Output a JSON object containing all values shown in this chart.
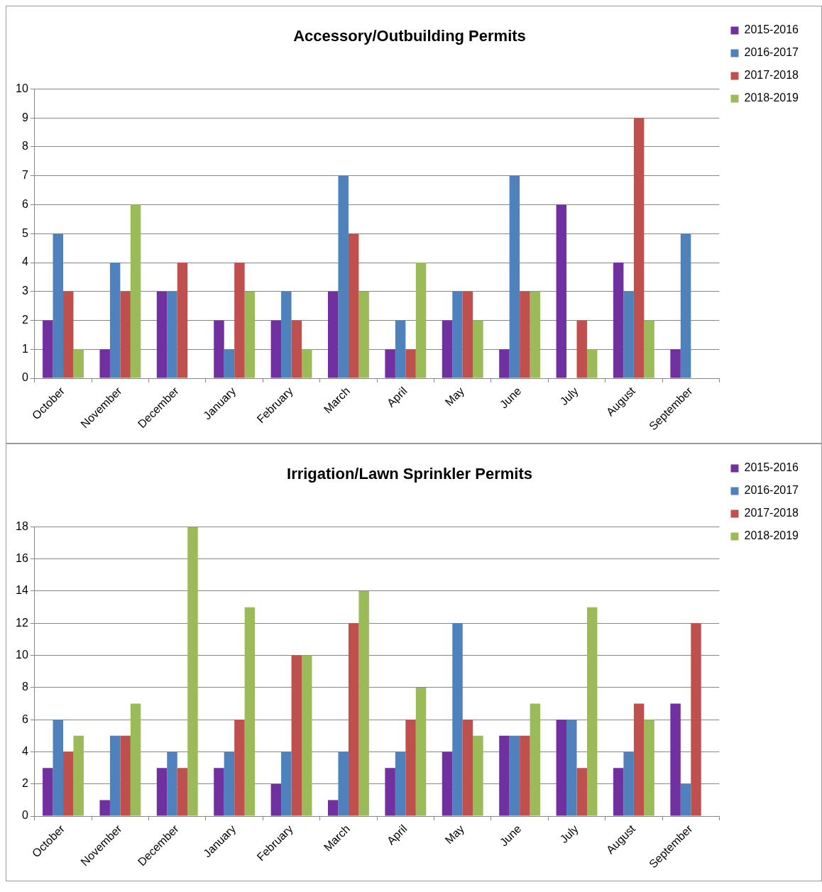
{
  "chart_data": [
    {
      "type": "bar",
      "title": "Accessory/Outbuilding Permits",
      "categories": [
        "October",
        "November",
        "December",
        "January",
        "February",
        "March",
        "April",
        "May",
        "June",
        "July",
        "August",
        "September"
      ],
      "series": [
        {
          "name": "2015-2016",
          "color": "#7030a0",
          "values": [
            2,
            1,
            3,
            2,
            2,
            3,
            1,
            2,
            1,
            6,
            4,
            1
          ]
        },
        {
          "name": "2016-2017",
          "color": "#4f81bd",
          "values": [
            5,
            4,
            3,
            1,
            3,
            7,
            2,
            3,
            7,
            0,
            3,
            5
          ]
        },
        {
          "name": "2017-2018",
          "color": "#c0504d",
          "values": [
            3,
            3,
            4,
            4,
            2,
            5,
            1,
            3,
            3,
            2,
            9,
            0
          ]
        },
        {
          "name": "2018-2019",
          "color": "#9bbb59",
          "values": [
            1,
            6,
            0,
            3,
            1,
            3,
            4,
            2,
            3,
            1,
            2,
            null
          ]
        }
      ],
      "ylim": [
        0,
        10
      ],
      "yticks": [
        0,
        1,
        2,
        3,
        4,
        5,
        6,
        7,
        8,
        9,
        10
      ],
      "grid": "y",
      "legend": "right"
    },
    {
      "type": "bar",
      "title": "Irrigation/Lawn Sprinkler Permits",
      "categories": [
        "October",
        "November",
        "December",
        "January",
        "February",
        "March",
        "April",
        "May",
        "June",
        "July",
        "August",
        "September"
      ],
      "series": [
        {
          "name": "2015-2016",
          "color": "#7030a0",
          "values": [
            3,
            1,
            3,
            3,
            2,
            1,
            3,
            4,
            5,
            6,
            3,
            7
          ]
        },
        {
          "name": "2016-2017",
          "color": "#4f81bd",
          "values": [
            6,
            5,
            4,
            4,
            4,
            4,
            4,
            12,
            5,
            6,
            4,
            2
          ]
        },
        {
          "name": "2017-2018",
          "color": "#c0504d",
          "values": [
            4,
            5,
            3,
            6,
            10,
            12,
            6,
            6,
            5,
            3,
            7,
            12
          ]
        },
        {
          "name": "2018-2019",
          "color": "#9bbb59",
          "values": [
            5,
            7,
            18,
            13,
            10,
            14,
            8,
            5,
            7,
            13,
            6,
            null
          ]
        }
      ],
      "ylim": [
        0,
        18
      ],
      "yticks": [
        0,
        2,
        4,
        6,
        8,
        10,
        12,
        14,
        16,
        18
      ],
      "grid": "y",
      "legend": "right"
    }
  ]
}
